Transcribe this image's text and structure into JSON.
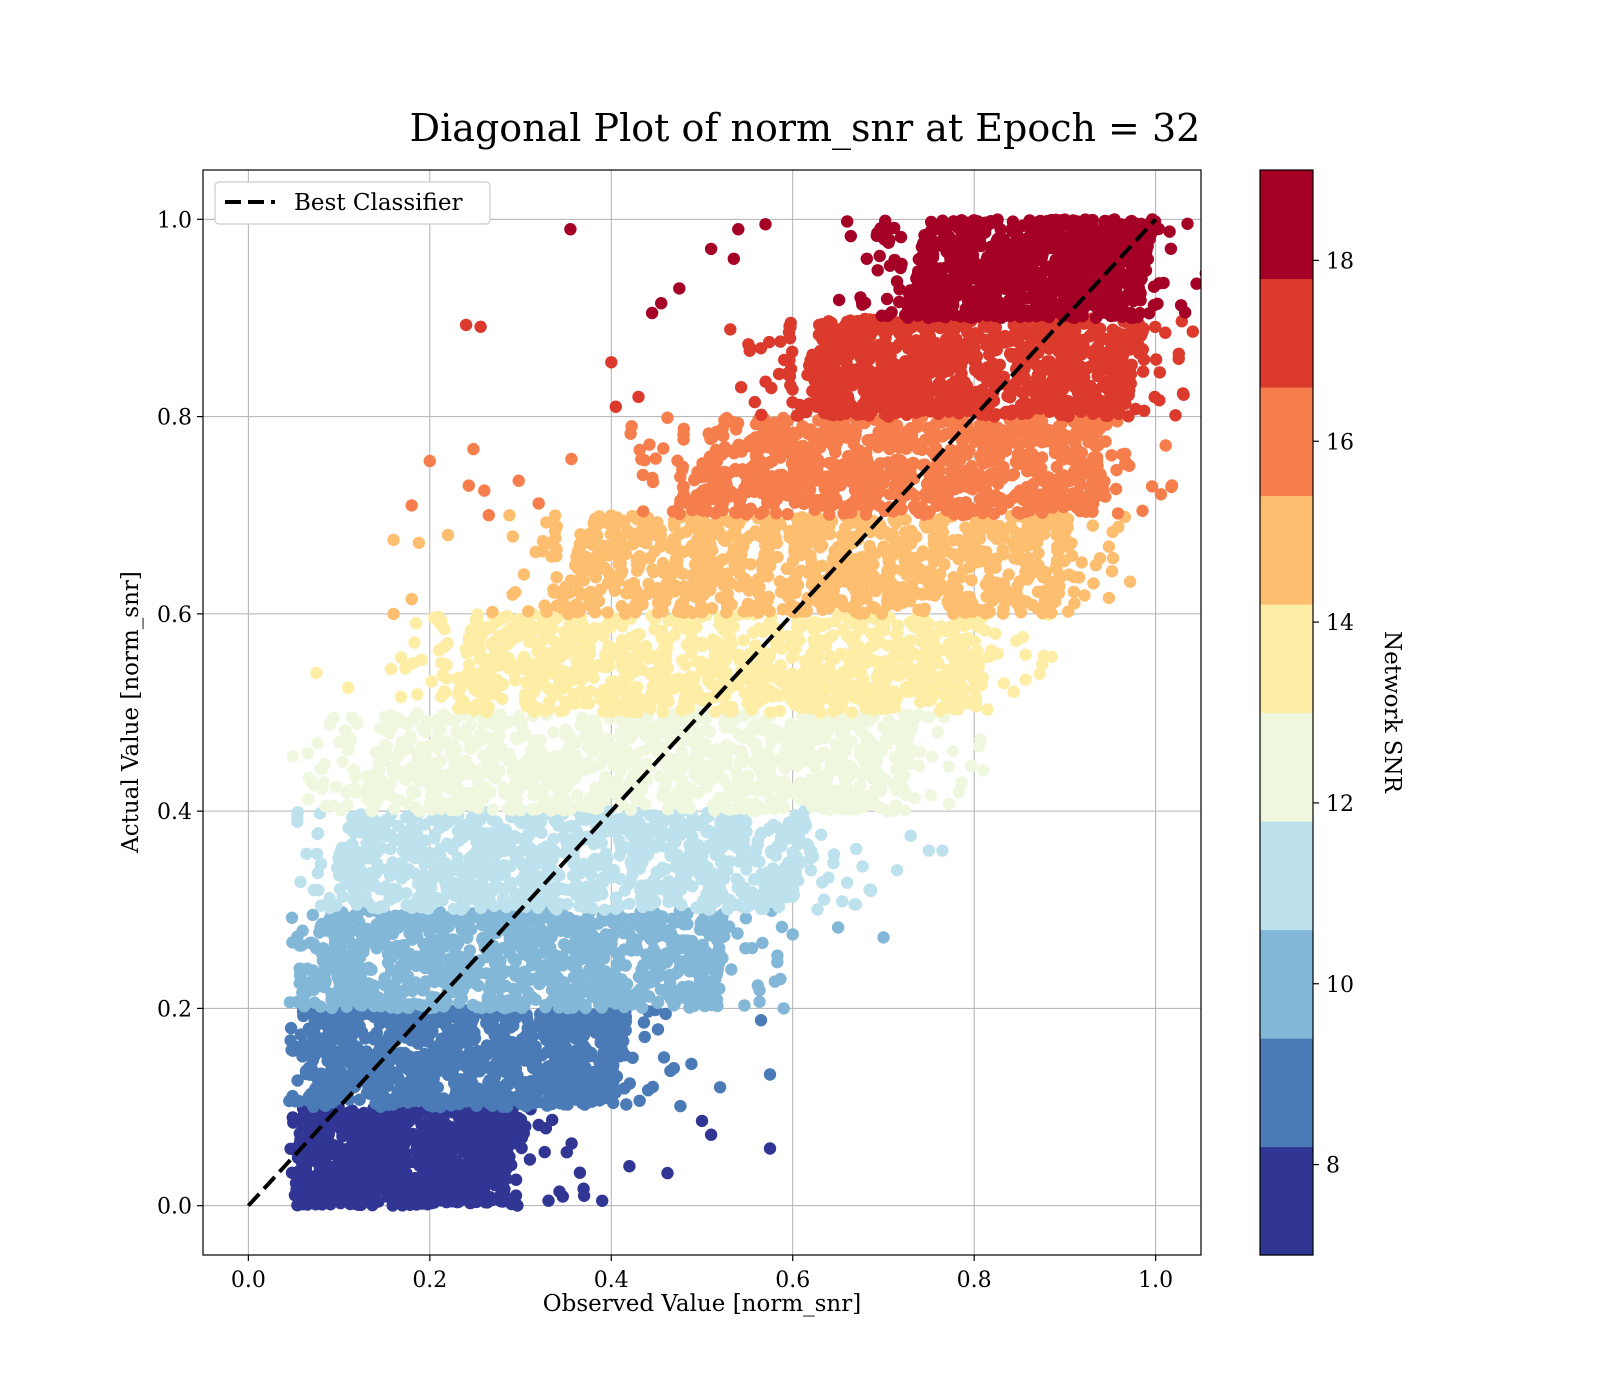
{
  "chart_data": {
    "type": "scatter",
    "title": "Diagonal Plot of norm_snr at Epoch = 32",
    "xlabel": "Observed Value [norm_snr]",
    "ylabel": "Actual Value [norm_snr]",
    "xlim": [
      -0.05,
      1.05
    ],
    "ylim": [
      -0.05,
      1.05
    ],
    "x_ticks": [
      "0.0",
      "0.2",
      "0.4",
      "0.6",
      "0.8",
      "1.0"
    ],
    "y_ticks": [
      "0.0",
      "0.2",
      "0.4",
      "0.6",
      "0.8",
      "1.0"
    ],
    "grid": true,
    "legend": {
      "placement": "top-left",
      "entries": [
        "Best Classifier"
      ]
    },
    "reference_line": {
      "name": "Best Classifier",
      "x": [
        0,
        1
      ],
      "y": [
        0,
        1
      ],
      "style": "dashed",
      "color": "#000000"
    },
    "colorbar": {
      "label": "Network SNR",
      "range": [
        7,
        19
      ],
      "ticks": [
        "8",
        "10",
        "12",
        "14",
        "16",
        "18"
      ],
      "bands": [
        {
          "from": 7.0,
          "to": 8.2,
          "color": "#313695"
        },
        {
          "from": 8.2,
          "to": 9.4,
          "color": "#4a7bb7"
        },
        {
          "from": 9.4,
          "to": 10.6,
          "color": "#83b7d7"
        },
        {
          "from": 10.6,
          "to": 11.8,
          "color": "#bee2ed"
        },
        {
          "from": 11.8,
          "to": 13.0,
          "color": "#eff8df"
        },
        {
          "from": 13.0,
          "to": 14.2,
          "color": "#feeda4"
        },
        {
          "from": 14.2,
          "to": 15.4,
          "color": "#fdbe70"
        },
        {
          "from": 15.4,
          "to": 16.6,
          "color": "#f57e4c"
        },
        {
          "from": 16.6,
          "to": 17.8,
          "color": "#db3a2c"
        },
        {
          "from": 17.8,
          "to": 19.0,
          "color": "#a50026"
        }
      ]
    },
    "point_bands": [
      {
        "y_range": [
          0.0,
          0.1
        ],
        "x_core": [
          0.05,
          0.28
        ],
        "color": "#313695"
      },
      {
        "y_range": [
          0.1,
          0.2
        ],
        "x_core": [
          0.05,
          0.4
        ],
        "color": "#4a7bb7"
      },
      {
        "y_range": [
          0.2,
          0.3
        ],
        "x_core": [
          0.06,
          0.51
        ],
        "color": "#83b7d7"
      },
      {
        "y_range": [
          0.3,
          0.4
        ],
        "x_core": [
          0.08,
          0.6
        ],
        "color": "#bee2ed"
      },
      {
        "y_range": [
          0.4,
          0.5
        ],
        "x_core": [
          0.12,
          0.72
        ],
        "color": "#eff8df"
      },
      {
        "y_range": [
          0.5,
          0.6
        ],
        "x_core": [
          0.22,
          0.8
        ],
        "color": "#feeda4"
      },
      {
        "y_range": [
          0.6,
          0.7
        ],
        "x_core": [
          0.34,
          0.89
        ],
        "color": "#fdbe70"
      },
      {
        "y_range": [
          0.7,
          0.8
        ],
        "x_core": [
          0.48,
          0.93
        ],
        "color": "#f57e4c"
      },
      {
        "y_range": [
          0.8,
          0.9
        ],
        "x_core": [
          0.6,
          0.97
        ],
        "color": "#db3a2c"
      },
      {
        "y_range": [
          0.9,
          1.0
        ],
        "x_core": [
          0.72,
          0.98
        ],
        "color": "#a50026"
      }
    ],
    "outliers": [
      {
        "x": 0.355,
        "y": 0.99,
        "color": "#a50026"
      },
      {
        "x": 0.51,
        "y": 0.97,
        "color": "#a50026"
      },
      {
        "x": 0.535,
        "y": 0.96,
        "color": "#a50026"
      },
      {
        "x": 0.54,
        "y": 0.99,
        "color": "#a50026"
      },
      {
        "x": 0.57,
        "y": 0.995,
        "color": "#a50026"
      },
      {
        "x": 0.475,
        "y": 0.93,
        "color": "#a50026"
      },
      {
        "x": 0.445,
        "y": 0.905,
        "color": "#a50026"
      },
      {
        "x": 0.455,
        "y": 0.915,
        "color": "#a50026"
      },
      {
        "x": 0.24,
        "y": 0.893,
        "color": "#db3a2c"
      },
      {
        "x": 0.256,
        "y": 0.891,
        "color": "#db3a2c"
      },
      {
        "x": 0.4,
        "y": 0.855,
        "color": "#db3a2c"
      },
      {
        "x": 0.43,
        "y": 0.82,
        "color": "#db3a2c"
      },
      {
        "x": 0.405,
        "y": 0.81,
        "color": "#db3a2c"
      },
      {
        "x": 0.2,
        "y": 0.755,
        "color": "#f57e4c"
      },
      {
        "x": 0.248,
        "y": 0.767,
        "color": "#f57e4c"
      },
      {
        "x": 0.18,
        "y": 0.71,
        "color": "#f57e4c"
      },
      {
        "x": 0.243,
        "y": 0.73,
        "color": "#f57e4c"
      },
      {
        "x": 0.26,
        "y": 0.725,
        "color": "#f57e4c"
      },
      {
        "x": 0.298,
        "y": 0.735,
        "color": "#f57e4c"
      },
      {
        "x": 0.32,
        "y": 0.712,
        "color": "#f57e4c"
      },
      {
        "x": 0.356,
        "y": 0.757,
        "color": "#f57e4c"
      },
      {
        "x": 0.265,
        "y": 0.7,
        "color": "#f57e4c"
      },
      {
        "x": 0.16,
        "y": 0.675,
        "color": "#fdbe70"
      },
      {
        "x": 0.188,
        "y": 0.672,
        "color": "#fdbe70"
      },
      {
        "x": 0.22,
        "y": 0.68,
        "color": "#fdbe70"
      },
      {
        "x": 0.18,
        "y": 0.615,
        "color": "#fdbe70"
      },
      {
        "x": 0.16,
        "y": 0.6,
        "color": "#fdbe70"
      },
      {
        "x": 0.075,
        "y": 0.54,
        "color": "#feeda4"
      },
      {
        "x": 0.11,
        "y": 0.525,
        "color": "#feeda4"
      },
      {
        "x": 0.09,
        "y": 0.488,
        "color": "#eff8df"
      },
      {
        "x": 0.1,
        "y": 0.47,
        "color": "#eff8df"
      },
      {
        "x": 0.085,
        "y": 0.405,
        "color": "#eff8df"
      },
      {
        "x": 0.75,
        "y": 0.495,
        "color": "#eff8df"
      },
      {
        "x": 0.76,
        "y": 0.48,
        "color": "#eff8df"
      },
      {
        "x": 0.72,
        "y": 0.45,
        "color": "#eff8df"
      },
      {
        "x": 0.765,
        "y": 0.36,
        "color": "#bee2ed"
      },
      {
        "x": 0.75,
        "y": 0.36,
        "color": "#bee2ed"
      },
      {
        "x": 0.73,
        "y": 0.375,
        "color": "#bee2ed"
      },
      {
        "x": 0.715,
        "y": 0.34,
        "color": "#bee2ed"
      },
      {
        "x": 0.7,
        "y": 0.272,
        "color": "#83b7d7"
      },
      {
        "x": 0.65,
        "y": 0.282,
        "color": "#83b7d7"
      },
      {
        "x": 0.6,
        "y": 0.275,
        "color": "#83b7d7"
      },
      {
        "x": 0.59,
        "y": 0.2,
        "color": "#83b7d7"
      },
      {
        "x": 0.565,
        "y": 0.188,
        "color": "#4a7bb7"
      },
      {
        "x": 0.575,
        "y": 0.133,
        "color": "#4a7bb7"
      },
      {
        "x": 0.52,
        "y": 0.12,
        "color": "#4a7bb7"
      },
      {
        "x": 0.5,
        "y": 0.086,
        "color": "#313695"
      },
      {
        "x": 0.51,
        "y": 0.072,
        "color": "#313695"
      },
      {
        "x": 0.575,
        "y": 0.058,
        "color": "#313695"
      },
      {
        "x": 0.462,
        "y": 0.033,
        "color": "#313695"
      },
      {
        "x": 0.42,
        "y": 0.04,
        "color": "#313695"
      },
      {
        "x": 0.39,
        "y": 0.005,
        "color": "#313695"
      },
      {
        "x": 0.37,
        "y": 0.01,
        "color": "#313695"
      }
    ]
  }
}
